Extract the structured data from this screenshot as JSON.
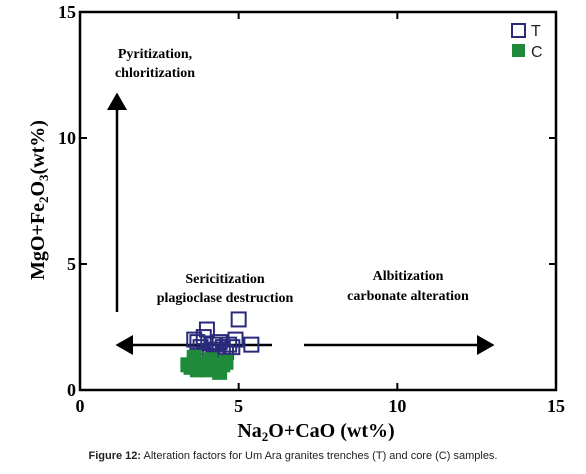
{
  "chart_data": {
    "type": "scatter",
    "x_range": [
      0,
      15
    ],
    "y_range": [
      0,
      15
    ],
    "x_ticks": [
      "0",
      "5",
      "10",
      "15"
    ],
    "y_ticks": [
      "0",
      "5",
      "10",
      "15"
    ],
    "xlabel_parts": [
      "Na",
      "2",
      "O+CaO (wt%)"
    ],
    "ylabel_parts": [
      "MgO+Fe",
      "2",
      "O",
      "3",
      "(wt%)"
    ],
    "grid": false,
    "legend_position": "top-right",
    "annotations": {
      "top_line1": "Pyritization,",
      "top_line2": "chloritization",
      "left_line1": "Sericitization",
      "left_line2": "plagioclase destruction",
      "right_line1": "Albitization",
      "right_line2": "carbonate alteration"
    },
    "series": [
      {
        "name": "T",
        "marker": "open-square",
        "color": "#2a2a7a",
        "points": [
          [
            3.6,
            2.0
          ],
          [
            3.7,
            1.9
          ],
          [
            3.8,
            1.7
          ],
          [
            3.9,
            2.1
          ],
          [
            4.0,
            2.4
          ],
          [
            4.1,
            1.5
          ],
          [
            4.2,
            1.8
          ],
          [
            4.3,
            1.6
          ],
          [
            4.4,
            1.9
          ],
          [
            4.5,
            1.7
          ],
          [
            4.7,
            1.8
          ],
          [
            4.9,
            2.0
          ],
          [
            5.0,
            2.8
          ],
          [
            5.4,
            1.8
          ],
          [
            4.0,
            1.3
          ],
          [
            4.2,
            1.0
          ],
          [
            3.9,
            1.4
          ],
          [
            4.6,
            1.5
          ],
          [
            4.8,
            1.7
          ]
        ]
      },
      {
        "name": "C",
        "marker": "filled-square",
        "color": "#1e8a3a",
        "points": [
          [
            3.4,
            1.0
          ],
          [
            3.5,
            0.9
          ],
          [
            3.6,
            1.1
          ],
          [
            3.7,
            0.8
          ],
          [
            3.8,
            1.0
          ],
          [
            4.0,
            0.8
          ],
          [
            4.1,
            1.2
          ],
          [
            4.3,
            0.9
          ],
          [
            4.4,
            0.7
          ],
          [
            4.5,
            1.0
          ],
          [
            4.6,
            1.1
          ],
          [
            3.6,
            1.3
          ]
        ]
      }
    ]
  },
  "caption": {
    "label": "Figure 12:",
    "text": " Alteration factors for Um Ara granites trenches (T) and core (C) samples."
  }
}
